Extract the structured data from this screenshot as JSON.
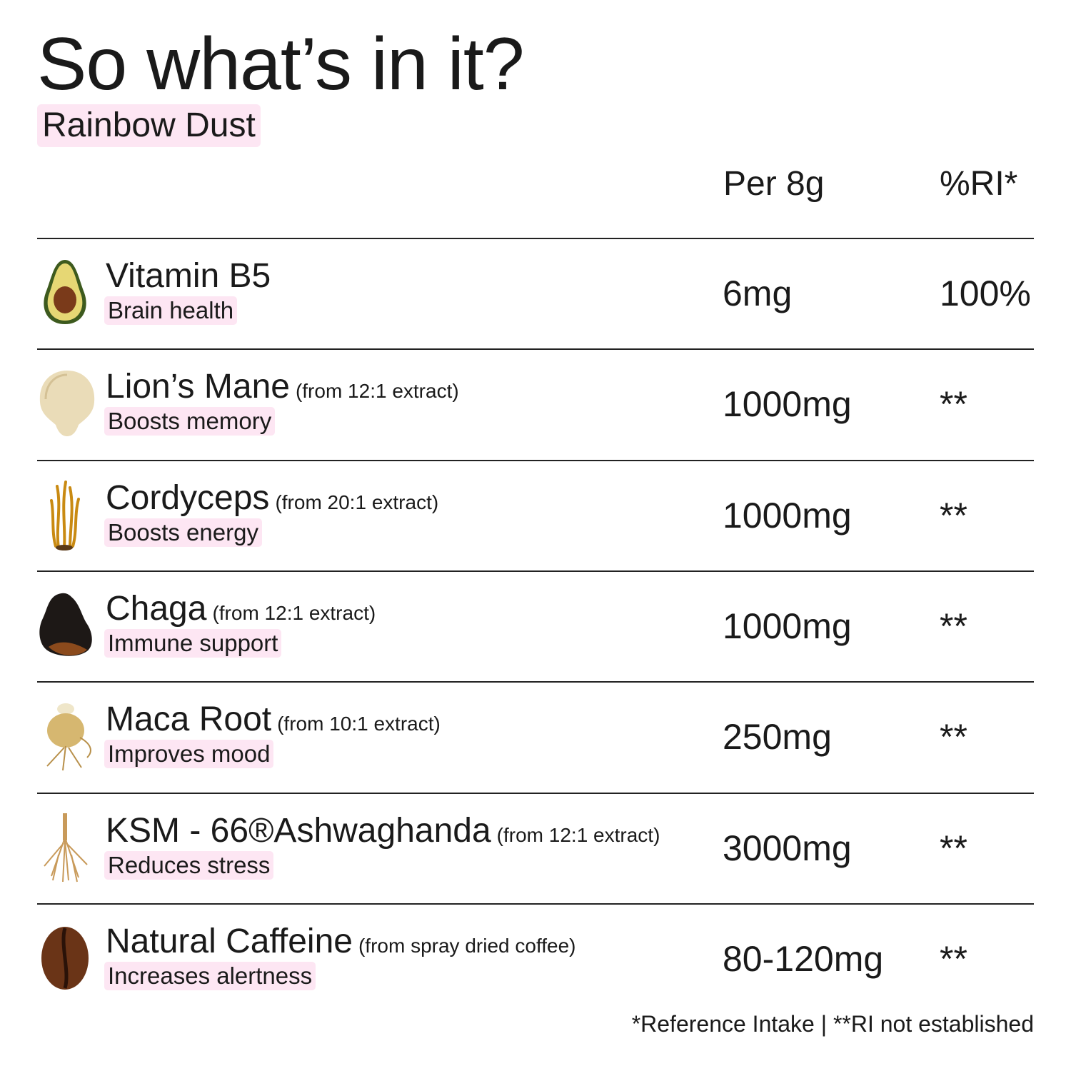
{
  "title": "So what’s in it?",
  "subtitle": "Rainbow Dust",
  "columns": {
    "amount": "Per 8g",
    "ri": "%RI*"
  },
  "colors": {
    "highlight": "#fde6f3",
    "text": "#1a1a1a",
    "rule": "#222222"
  },
  "rows": [
    {
      "icon": "avocado-icon",
      "name": "Vitamin B5",
      "note": "",
      "benefit": "Brain health",
      "amount": "6mg",
      "ri": "100%"
    },
    {
      "icon": "lions-mane-mushroom-icon",
      "name": "Lion’s Mane",
      "note": "(from 12:1 extract)",
      "benefit": "Boosts memory",
      "amount": "1000mg",
      "ri": "**"
    },
    {
      "icon": "cordyceps-icon",
      "name": "Cordyceps",
      "note": "(from 20:1 extract)",
      "benefit": "Boosts energy",
      "amount": "1000mg",
      "ri": "**"
    },
    {
      "icon": "chaga-icon",
      "name": "Chaga",
      "note": "(from 12:1 extract)",
      "benefit": "Immune support",
      "amount": "1000mg",
      "ri": "**"
    },
    {
      "icon": "maca-root-icon",
      "name": "Maca Root",
      "note": "(from 10:1 extract)",
      "benefit": "Improves mood",
      "amount": "250mg",
      "ri": "**"
    },
    {
      "icon": "ashwagandha-root-icon",
      "name": "KSM - 66®Ashwaghanda",
      "note": "(from 12:1 extract)",
      "benefit": "Reduces stress",
      "amount": "3000mg",
      "ri": "**"
    },
    {
      "icon": "coffee-bean-icon",
      "name": "Natural Caffeine",
      "note": "(from spray dried coffee)",
      "benefit": "Increases alertness",
      "amount": "80-120mg",
      "ri": "**"
    }
  ],
  "footnote": "*Reference Intake | **RI not established"
}
